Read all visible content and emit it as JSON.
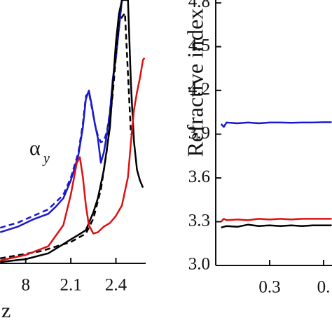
{
  "chart_data": [
    {
      "type": "line",
      "xlabel": "z",
      "annotation": {
        "text": "α",
        "sub": "y"
      },
      "xlim": [
        1.629,
        2.598
      ],
      "ylim": [
        0,
        100
      ],
      "xticks": [
        {
          "value": 1.8,
          "label": "8"
        },
        2.1,
        2.4
      ],
      "series": [
        {
          "color": "#1a1acc",
          "x": [
            1.63,
            1.75,
            1.85,
            1.95,
            2.0,
            2.05,
            2.1,
            2.15,
            2.18,
            2.2,
            2.22,
            2.24,
            2.26,
            2.28,
            2.3,
            2.32,
            2.34,
            2.36,
            2.38,
            2.4,
            2.42,
            2.44
          ],
          "values": [
            11.8,
            14,
            16.7,
            18.8,
            21.5,
            24.7,
            31.5,
            40.9,
            51.6,
            62.4,
            65.6,
            59.7,
            53,
            47.6,
            38.2,
            42.2,
            48.9,
            57,
            70.4,
            78.5,
            89.2,
            100
          ]
        },
        {
          "color": "#1a1acc",
          "dashed": true,
          "x": [
            1.63,
            1.75,
            1.85,
            1.95,
            2.05,
            2.1,
            2.15,
            2.18,
            2.2,
            2.22,
            2.24,
            2.26,
            2.28,
            2.3,
            2.32,
            2.34,
            2.36,
            2.38,
            2.4,
            2.42,
            2.44
          ],
          "values": [
            13.5,
            15.5,
            18,
            20.5,
            26,
            32.5,
            42,
            53,
            63.5,
            65,
            59,
            53,
            48.5,
            46,
            46.5,
            50,
            57.5,
            70,
            78,
            89,
            100
          ]
        },
        {
          "color": "#000000",
          "x": [
            1.63,
            1.8,
            1.95,
            2.05,
            2.1,
            2.15,
            2.2,
            2.25,
            2.28,
            2.32,
            2.36,
            2.38,
            2.4,
            2.42,
            2.44,
            2.48,
            2.5,
            2.52,
            2.54,
            2.56,
            2.58
          ],
          "values": [
            0.5,
            1.6,
            3.8,
            7.3,
            9.1,
            10.8,
            12.6,
            19.4,
            24.7,
            35.5,
            51.6,
            67.7,
            83.9,
            94.6,
            100,
            100,
            67.7,
            46.2,
            35.5,
            31.5,
            28.8
          ]
        },
        {
          "color": "#000000",
          "dashed": true,
          "x": [
            1.63,
            1.9,
            2.1,
            2.2,
            2.25,
            2.3,
            2.34,
            2.38,
            2.42,
            2.46,
            2.5
          ],
          "values": [
            1.9,
            4.6,
            8.1,
            11.3,
            17,
            28,
            43,
            65,
            92,
            95,
            48.9
          ]
        },
        {
          "color": "#dd1111",
          "x": [
            1.63,
            1.8,
            1.95,
            2.05,
            2.1,
            2.14,
            2.16,
            2.18,
            2.2,
            2.22,
            2.25,
            2.28,
            2.32,
            2.36,
            2.4,
            2.44,
            2.48,
            2.5,
            2.52,
            2.54,
            2.56,
            2.58,
            2.59
          ],
          "values": [
            1.1,
            3.2,
            6.5,
            14.5,
            26.1,
            38.2,
            40.3,
            32.8,
            22,
            14.5,
            11.3,
            11.8,
            14,
            15.3,
            18,
            22,
            32.8,
            46.2,
            58.3,
            65,
            70.4,
            77.2,
            78
          ]
        }
      ]
    },
    {
      "type": "line",
      "ylabel": "Refractive index",
      "xlim": [
        0.2,
        0.4156
      ],
      "ylim": [
        3.0,
        4.82
      ],
      "xticks": [
        0.3,
        {
          "value": 0.4,
          "label": "0."
        }
      ],
      "yticks": [
        {
          "value": 3,
          "label": "3.0"
        },
        3.3,
        3.6,
        3.9,
        4.2,
        4.5,
        4.8
      ],
      "series": [
        {
          "color": "#1a1acc",
          "x": [
            0.21,
            0.215,
            0.22,
            0.24,
            0.26,
            0.28,
            0.3,
            0.32,
            0.34,
            0.36,
            0.38,
            0.4,
            0.415
          ],
          "values": [
            3.97,
            3.95,
            3.98,
            3.975,
            3.98,
            3.975,
            3.98,
            3.98,
            3.978,
            3.98,
            3.98,
            3.982,
            3.982
          ]
        },
        {
          "color": "#dd1111",
          "x": [
            0.21,
            0.215,
            0.22,
            0.24,
            0.26,
            0.28,
            0.3,
            0.32,
            0.34,
            0.36,
            0.38,
            0.4,
            0.415
          ],
          "values": [
            3.3,
            3.32,
            3.31,
            3.315,
            3.31,
            3.32,
            3.315,
            3.32,
            3.315,
            3.32,
            3.32,
            3.32,
            3.32
          ]
        },
        {
          "color": "#000000",
          "x": [
            0.21,
            0.215,
            0.22,
            0.24,
            0.26,
            0.28,
            0.3,
            0.32,
            0.34,
            0.36,
            0.38,
            0.4,
            0.415
          ],
          "values": [
            3.26,
            3.265,
            3.27,
            3.265,
            3.28,
            3.27,
            3.275,
            3.27,
            3.275,
            3.27,
            3.275,
            3.275,
            3.275
          ]
        }
      ]
    }
  ]
}
